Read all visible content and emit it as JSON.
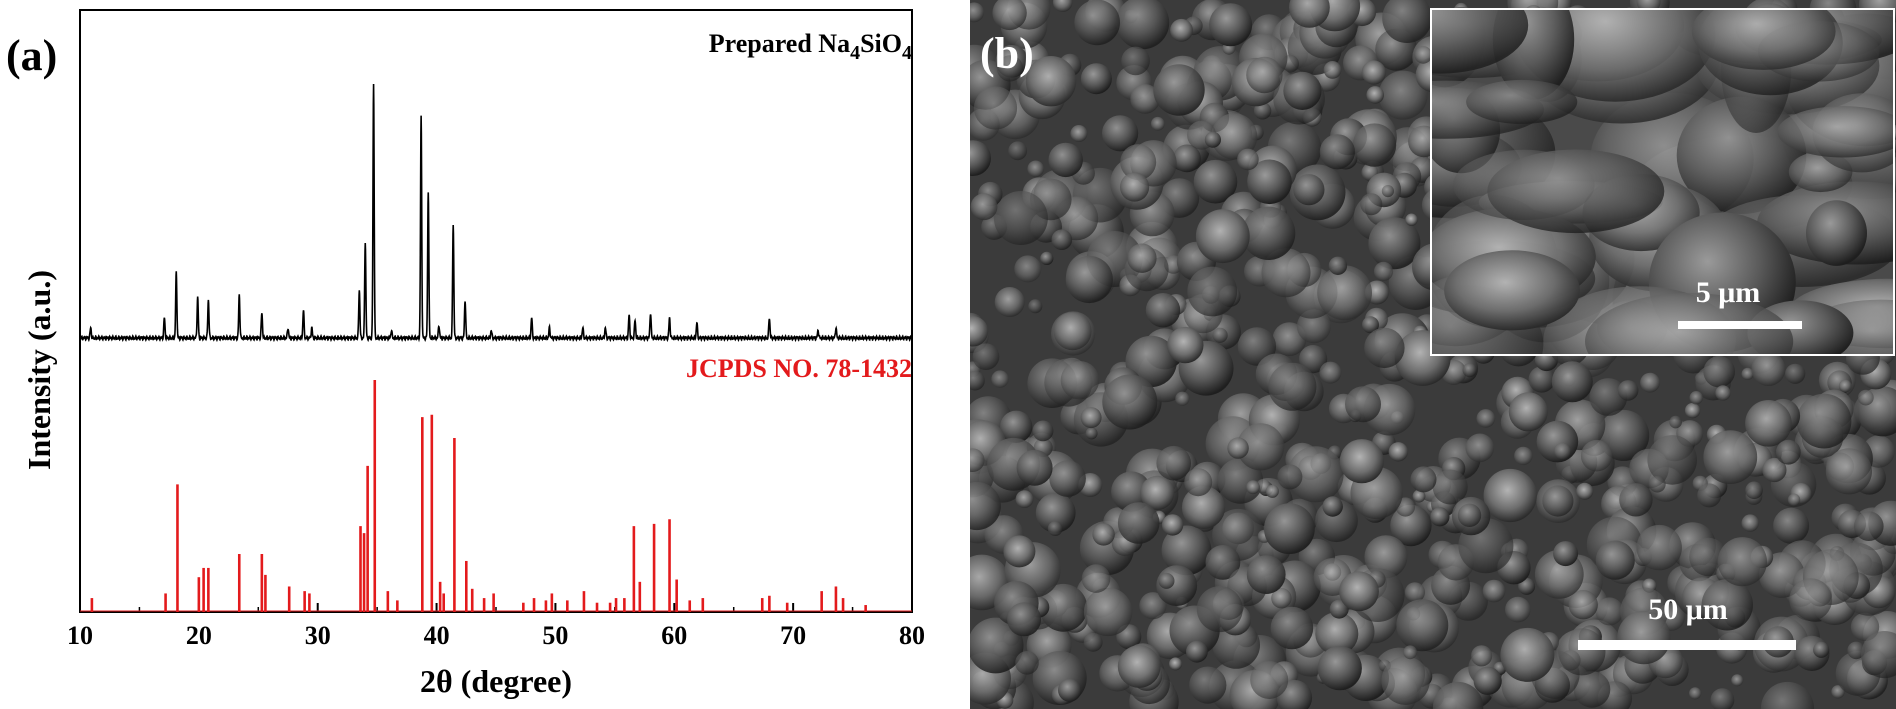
{
  "panel_a": {
    "label": "(a)",
    "ylabel": "Intensity (a.u.)",
    "xlabel": "2θ (degree)",
    "prepared_label_prefix": "Prepared Na",
    "prepared_label_sub1": "4",
    "prepared_label_mid": "SiO",
    "prepared_label_sub2": "4",
    "reference_label": "JCPDS NO. 78-1432",
    "colors": {
      "prepared": "#000000",
      "reference": "#e31a1c"
    }
  },
  "panel_b": {
    "label": "(b)",
    "scale_main": "50 μm",
    "scale_inset": "5 μm"
  },
  "chart_data": {
    "type": "line",
    "xlabel": "2θ (degree)",
    "ylabel": "Intensity (a.u.)",
    "xlim": [
      10,
      80
    ],
    "xticks": [
      10,
      20,
      30,
      40,
      50,
      60,
      70,
      80
    ],
    "series": [
      {
        "name": "Prepared Na4SiO4",
        "kind": "line",
        "peaks": [
          [
            10.9,
            4
          ],
          [
            17.1,
            8
          ],
          [
            18.1,
            26
          ],
          [
            19.9,
            16
          ],
          [
            20.8,
            15
          ],
          [
            23.4,
            17
          ],
          [
            25.3,
            10
          ],
          [
            27.5,
            4
          ],
          [
            28.8,
            11
          ],
          [
            29.5,
            4
          ],
          [
            33.5,
            19
          ],
          [
            34.0,
            38
          ],
          [
            34.7,
            100
          ],
          [
            36.2,
            3
          ],
          [
            38.7,
            87
          ],
          [
            39.3,
            58
          ],
          [
            40.2,
            5
          ],
          [
            41.4,
            45
          ],
          [
            42.4,
            15
          ],
          [
            44.6,
            3
          ],
          [
            48.0,
            8
          ],
          [
            49.5,
            4
          ],
          [
            52.3,
            4
          ],
          [
            54.2,
            4
          ],
          [
            56.2,
            9
          ],
          [
            56.7,
            7
          ],
          [
            58.0,
            10
          ],
          [
            59.6,
            8
          ],
          [
            61.9,
            6
          ],
          [
            68.0,
            8
          ],
          [
            72.1,
            3
          ],
          [
            73.6,
            4
          ]
        ]
      },
      {
        "name": "JCPDS NO. 78-1432",
        "kind": "stick",
        "peaks": [
          [
            11.0,
            6
          ],
          [
            17.2,
            8
          ],
          [
            18.2,
            55
          ],
          [
            20.0,
            15
          ],
          [
            20.4,
            19
          ],
          [
            20.8,
            19
          ],
          [
            23.4,
            25
          ],
          [
            25.3,
            25
          ],
          [
            25.6,
            16
          ],
          [
            27.6,
            11
          ],
          [
            28.9,
            9
          ],
          [
            29.3,
            8
          ],
          [
            33.6,
            37
          ],
          [
            33.9,
            34
          ],
          [
            34.2,
            63
          ],
          [
            34.8,
            100
          ],
          [
            35.9,
            9
          ],
          [
            36.7,
            5
          ],
          [
            38.8,
            84
          ],
          [
            39.6,
            85
          ],
          [
            40.3,
            13
          ],
          [
            40.6,
            8
          ],
          [
            41.5,
            75
          ],
          [
            42.5,
            22
          ],
          [
            43.0,
            10
          ],
          [
            44.0,
            6
          ],
          [
            44.8,
            8
          ],
          [
            47.3,
            4
          ],
          [
            48.2,
            6
          ],
          [
            49.2,
            5
          ],
          [
            49.7,
            8
          ],
          [
            51.0,
            5
          ],
          [
            52.4,
            9
          ],
          [
            53.5,
            4
          ],
          [
            54.6,
            4
          ],
          [
            55.1,
            6
          ],
          [
            55.8,
            6
          ],
          [
            56.6,
            37
          ],
          [
            57.1,
            13
          ],
          [
            58.3,
            38
          ],
          [
            59.6,
            40
          ],
          [
            60.2,
            14
          ],
          [
            61.3,
            5
          ],
          [
            62.4,
            6
          ],
          [
            67.4,
            6
          ],
          [
            68.0,
            7
          ],
          [
            69.5,
            4
          ],
          [
            72.4,
            9
          ],
          [
            73.6,
            11
          ],
          [
            74.2,
            6
          ],
          [
            76.1,
            3
          ]
        ]
      }
    ]
  }
}
